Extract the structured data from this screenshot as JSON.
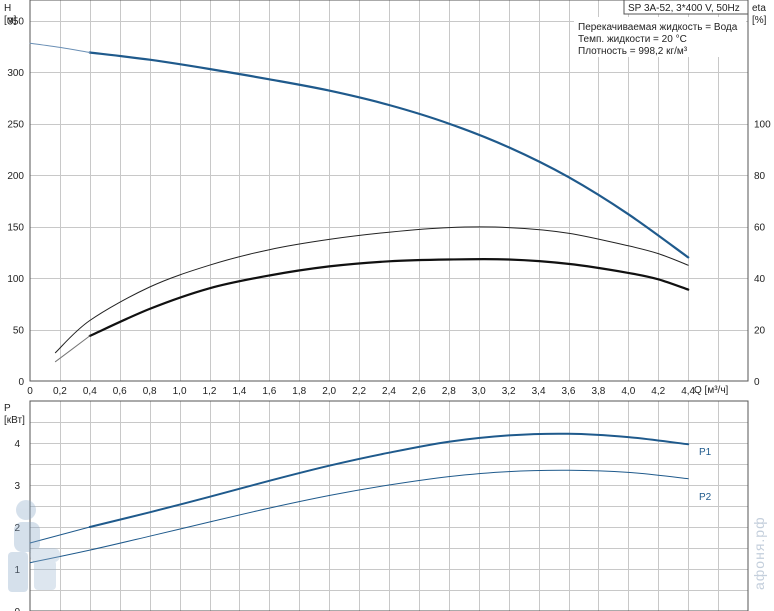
{
  "chart_data": [
    {
      "type": "line",
      "title": "SP 3A-52, 3*400 V, 50Hz",
      "annotations": [
        "Перекачиваемая жидкость = Вода",
        "Темп. жидкости = 20 °C",
        "Плотность = 998,2 кг/м³"
      ],
      "xlabel": "Q [м³/ч]",
      "ylabel_left": [
        "H",
        "[м]"
      ],
      "ylabel_right": [
        "eta",
        "[%]"
      ],
      "xlim": [
        0,
        4.8
      ],
      "ylim_left": [
        0,
        370
      ],
      "ylim_right": [
        0,
        148
      ],
      "x_ticks": [
        "0",
        "0,2",
        "0,4",
        "0,6",
        "0,8",
        "1,0",
        "1,2",
        "1,4",
        "1,6",
        "1,8",
        "2,0",
        "2,2",
        "2,4",
        "2,6",
        "2,8",
        "3,0",
        "3,2",
        "3,4",
        "3,6",
        "3,8",
        "4,0",
        "4,2",
        "4,4"
      ],
      "y_ticks_left": [
        "0",
        "50",
        "100",
        "150",
        "200",
        "250",
        "300",
        "350"
      ],
      "y_ticks_right": [
        "0",
        "20",
        "40",
        "60",
        "80",
        "100"
      ],
      "grid": true,
      "series": [
        {
          "axis": "left",
          "color": "#1f5a8c",
          "width": 2.2,
          "x": [
            0.4,
            0.8,
            1.2,
            1.6,
            2.0,
            2.4,
            2.8,
            3.2,
            3.6,
            4.0,
            4.4
          ],
          "y": [
            319,
            312,
            303,
            293,
            282,
            268,
            250,
            227,
            198,
            162,
            120
          ]
        },
        {
          "axis": "left",
          "color": "#6a8fb5",
          "width": 1,
          "x": [
            0.0,
            0.2,
            0.4
          ],
          "y": [
            328,
            324,
            319
          ]
        },
        {
          "axis": "right",
          "color": "#222222",
          "width": 1,
          "x": [
            0.17,
            0.4,
            0.8,
            1.2,
            1.6,
            2.0,
            2.4,
            2.8,
            3.2,
            3.6,
            4.0,
            4.2,
            4.4
          ],
          "y": [
            11,
            23.5,
            36.5,
            45,
            51,
            55,
            57.8,
            59.6,
            59.6,
            57.4,
            52.5,
            49.5,
            45
          ]
        },
        {
          "axis": "right",
          "color": "#111111",
          "width": 2.2,
          "x": [
            0.4,
            0.8,
            1.2,
            1.6,
            2.0,
            2.4,
            2.8,
            3.2,
            3.6,
            4.0,
            4.2,
            4.4
          ],
          "y": [
            17.5,
            28,
            36,
            41,
            44.5,
            46.5,
            47.2,
            47.2,
            45.5,
            42,
            39.5,
            35.5
          ]
        },
        {
          "axis": "right",
          "color": "#777777",
          "width": 1,
          "x": [
            0.17,
            0.4
          ],
          "y": [
            7.5,
            17.5
          ]
        }
      ]
    },
    {
      "type": "line",
      "xlim": [
        0,
        4.8
      ],
      "ylabel_left": [
        "P",
        "[кВт]"
      ],
      "ylim": [
        0,
        5
      ],
      "y_ticks": [
        "0",
        "1",
        "2",
        "3",
        "4"
      ],
      "grid": true,
      "series": [
        {
          "name": "P1",
          "color": "#1f5a8c",
          "width": 2,
          "x": [
            0.4,
            0.8,
            1.2,
            1.6,
            2.0,
            2.4,
            2.8,
            3.2,
            3.6,
            4.0,
            4.4
          ],
          "y": [
            2.0,
            2.35,
            2.72,
            3.1,
            3.46,
            3.77,
            4.03,
            4.18,
            4.22,
            4.14,
            3.97
          ]
        },
        {
          "name": "",
          "color": "#1f5a8c",
          "width": 1,
          "x": [
            0.0,
            0.4
          ],
          "y": [
            1.62,
            2.0
          ]
        },
        {
          "name": "P2",
          "color": "#1f5a8c",
          "width": 1,
          "x": [
            0.0,
            0.4,
            0.8,
            1.2,
            1.6,
            2.0,
            2.4,
            2.8,
            3.2,
            3.6,
            4.0,
            4.4
          ],
          "y": [
            1.15,
            1.45,
            1.78,
            2.12,
            2.45,
            2.75,
            3.0,
            3.2,
            3.32,
            3.35,
            3.3,
            3.15
          ]
        }
      ]
    }
  ],
  "watermark": "афоня.рф"
}
